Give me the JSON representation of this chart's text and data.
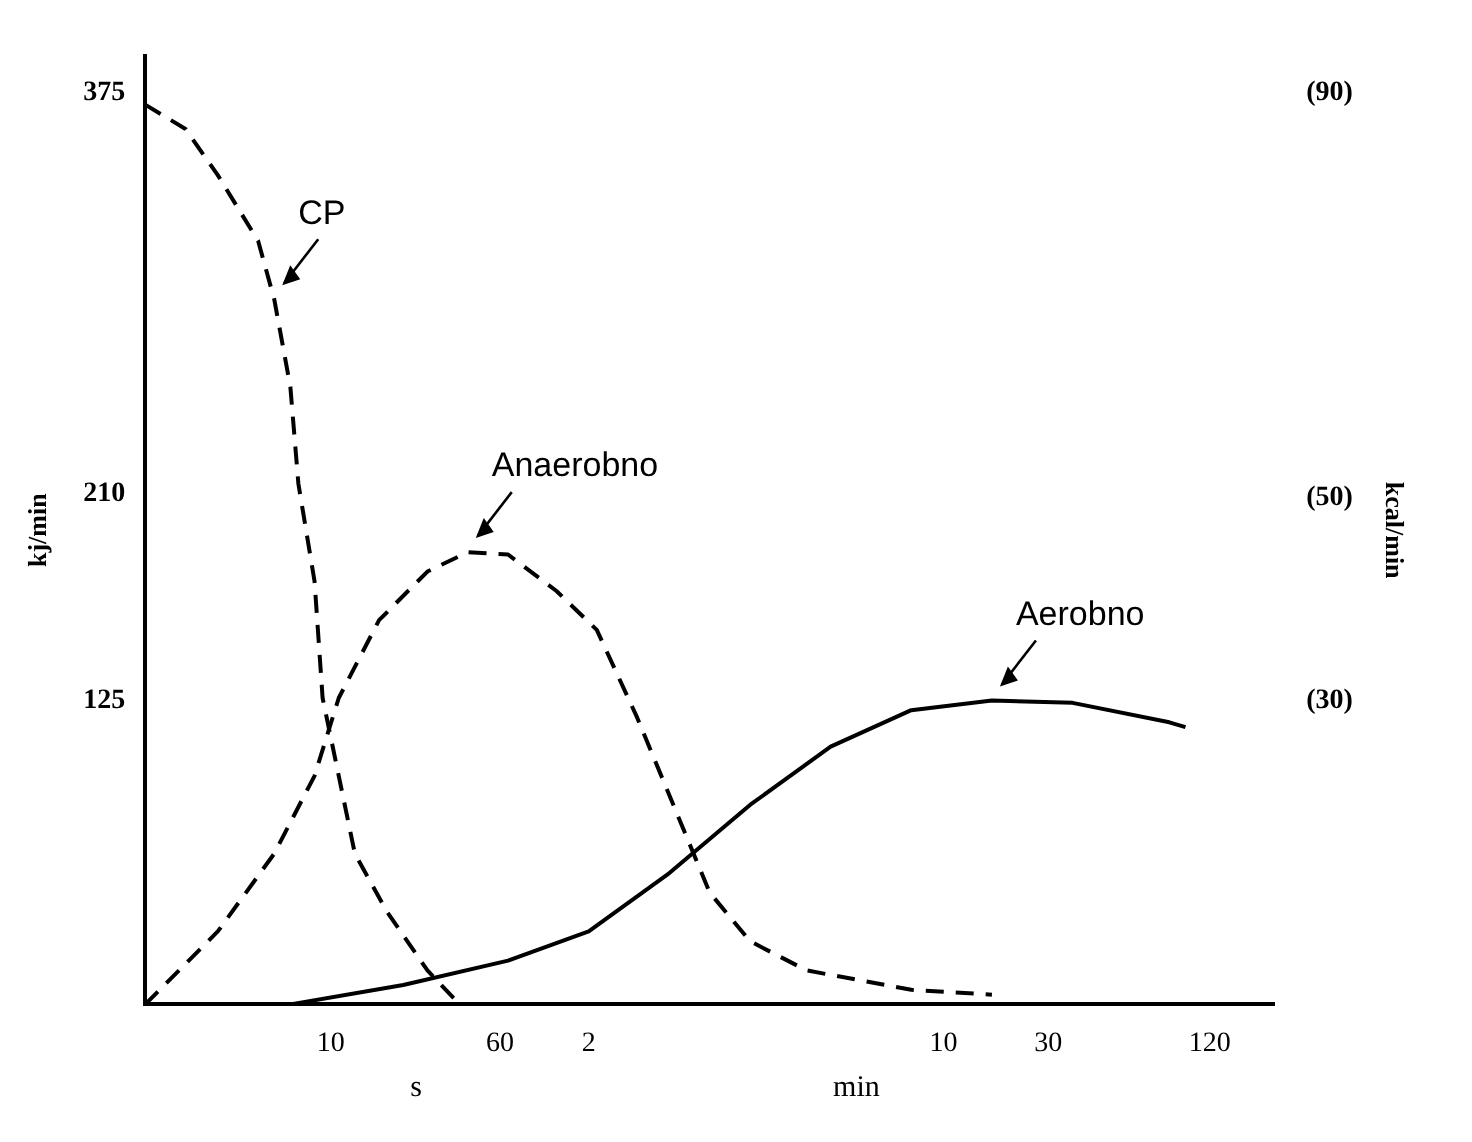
{
  "chart_data": {
    "type": "line",
    "ylabel": "kj/min",
    "y2label": "kcal/min",
    "categories": [
      null,
      null,
      null,
      null,
      null,
      null,
      null,
      null,
      null,
      null,
      null,
      null,
      null,
      null,
      null,
      null,
      null,
      null,
      null,
      null,
      null,
      null,
      null,
      "10",
      null,
      null,
      null,
      null,
      null,
      null,
      null,
      null,
      null,
      null,
      null,
      null,
      null,
      null,
      null,
      null,
      null,
      null,
      null,
      null,
      "60",
      null,
      null,
      null,
      null,
      null,
      null,
      null,
      null,
      null,
      null,
      "2",
      null,
      null,
      null,
      null,
      null,
      null,
      null,
      null,
      null,
      null,
      null,
      null,
      null,
      null,
      null,
      null,
      null,
      null,
      null,
      null,
      null,
      null,
      null,
      null,
      null,
      null,
      null,
      null,
      null,
      null,
      null,
      null,
      null,
      null,
      null,
      null,
      null,
      null,
      null,
      null,
      null,
      null,
      null,
      "10",
      null,
      null,
      null,
      null,
      null,
      null,
      null,
      null,
      null,
      null,
      null,
      null,
      "30",
      null,
      null,
      null,
      null,
      null,
      null,
      null,
      null,
      null,
      null,
      null,
      null,
      null,
      null,
      null,
      null,
      null,
      null,
      null,
      "120",
      null,
      null,
      null,
      null,
      null,
      null,
      null,
      null
    ],
    "series": [
      {
        "name": "CP",
        "color": "#000000",
        "line_style": "dashed",
        "values": [
          370,
          null,
          null,
          null,
          null,
          360,
          null,
          null,
          null,
          341,
          null,
          null,
          null,
          null,
          314,
          null,
          290,
          null,
          254,
          214,
          null,
          174,
          126,
          null,
          94,
          null,
          62,
          null,
          null,
          null,
          38,
          null,
          null,
          null,
          null,
          14,
          null,
          null,
          null,
          0,
          null,
          null,
          null,
          null,
          null,
          null,
          null,
          null,
          null,
          null,
          null,
          null,
          null,
          null,
          null,
          null,
          null,
          null,
          null,
          null,
          null,
          null,
          null,
          null,
          null,
          null,
          null,
          null,
          null,
          null,
          null,
          null,
          null,
          null,
          null,
          null,
          null,
          null,
          null,
          null,
          null,
          null,
          null,
          null,
          null,
          null,
          null,
          null,
          null,
          null,
          null,
          null,
          null,
          null,
          null,
          null,
          null,
          null,
          null,
          null,
          null,
          null,
          null,
          null,
          null,
          null,
          null,
          null,
          null,
          null,
          null,
          null,
          null,
          null,
          null,
          null,
          null,
          null,
          null,
          null,
          null,
          null,
          null,
          null,
          null,
          null,
          null,
          null,
          null,
          null,
          null,
          null,
          null,
          null,
          null,
          null,
          null,
          null,
          null,
          null,
          null
        ]
      },
      {
        "name": "Anaerobno",
        "color": "#000000",
        "line_style": "dashed",
        "values": [
          0,
          null,
          null,
          null,
          null,
          null,
          null,
          null,
          null,
          30,
          null,
          null,
          null,
          null,
          null,
          null,
          62,
          null,
          null,
          null,
          null,
          94,
          null,
          null,
          126,
          null,
          null,
          null,
          null,
          158,
          null,
          null,
          null,
          null,
          null,
          178,
          null,
          null,
          null,
          null,
          186,
          null,
          null,
          null,
          null,
          185,
          null,
          null,
          null,
          null,
          null,
          170,
          null,
          null,
          null,
          null,
          154,
          null,
          null,
          null,
          null,
          118,
          null,
          null,
          null,
          null,
          78,
          null,
          null,
          null,
          46,
          null,
          null,
          null,
          null,
          26,
          null,
          null,
          null,
          null,
          null,
          null,
          14,
          null,
          null,
          null,
          null,
          null,
          null,
          null,
          null,
          null,
          null,
          null,
          null,
          6,
          null,
          null,
          null,
          null,
          null,
          null,
          null,
          null,
          null,
          4,
          null,
          null,
          null,
          null,
          null,
          null,
          null,
          null,
          null,
          null,
          null,
          null,
          null,
          null,
          null,
          null,
          null,
          null,
          null,
          null,
          null,
          null,
          null,
          null,
          null,
          null,
          null,
          null,
          null,
          null,
          null,
          null,
          null,
          null,
          null
        ]
      },
      {
        "name": "Aerobno",
        "color": "#000000",
        "line_style": "solid",
        "values": [
          null,
          null,
          null,
          null,
          null,
          null,
          null,
          null,
          null,
          null,
          null,
          null,
          null,
          null,
          null,
          null,
          null,
          null,
          0,
          null,
          null,
          null,
          null,
          null,
          null,
          null,
          null,
          null,
          null,
          null,
          null,
          null,
          8,
          null,
          null,
          null,
          null,
          null,
          null,
          null,
          null,
          null,
          null,
          null,
          null,
          18,
          null,
          null,
          null,
          null,
          null,
          null,
          null,
          null,
          null,
          30,
          null,
          null,
          null,
          null,
          null,
          null,
          null,
          null,
          null,
          54,
          null,
          null,
          null,
          null,
          null,
          null,
          null,
          null,
          null,
          82,
          null,
          null,
          null,
          null,
          null,
          null,
          null,
          null,
          null,
          106,
          null,
          null,
          null,
          null,
          null,
          null,
          null,
          null,
          null,
          121,
          null,
          null,
          null,
          null,
          null,
          null,
          null,
          null,
          null,
          125,
          null,
          null,
          null,
          null,
          null,
          null,
          null,
          null,
          null,
          124,
          null,
          null,
          null,
          null,
          null,
          null,
          null,
          null,
          null,
          null,
          null,
          116,
          null,
          114,
          null,
          null,
          null,
          null,
          null,
          null,
          null,
          null,
          null,
          null,
          null
        ]
      }
    ],
    "ylim": [
      0,
      390
    ],
    "yticks": [
      375,
      210,
      125
    ],
    "y2lim": [
      0,
      93.6
    ],
    "y2ticks": [
      {
        "value": 90,
        "label": "(90)"
      },
      {
        "value": 50,
        "label": "(50)"
      },
      {
        "value": 30,
        "label": "(30)"
      }
    ],
    "annotations": [
      "s",
      "min"
    ],
    "grid": false,
    "legend": false,
    "marker": "none"
  }
}
